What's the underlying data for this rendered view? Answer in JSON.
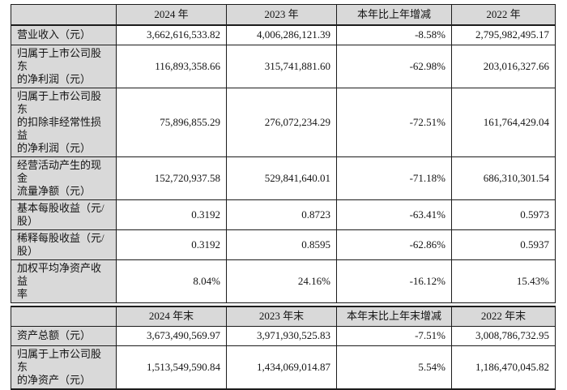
{
  "table": {
    "colors": {
      "header_bg": "#d9d9d9",
      "border": "#1c1c1c",
      "text": "#141414",
      "page_bg": "#ffffff"
    },
    "section1": {
      "header": {
        "c0": "",
        "c1": "2024 年",
        "c2": "2023 年",
        "c3": "本年比上年增减",
        "c4": "2022 年"
      },
      "rows": [
        {
          "label": "营业收入（元）",
          "v1": "3,662,616,533.82",
          "v2": "4,006,286,121.39",
          "v3": "-8.58%",
          "v4": "2,795,982,495.17"
        },
        {
          "label": "归属于上市公司股东\n的净利润（元）",
          "v1": "116,893,358.66",
          "v2": "315,741,881.60",
          "v3": "-62.98%",
          "v4": "203,016,327.66"
        },
        {
          "label": "归属于上市公司股东\n的扣除非经常性损益\n的净利润（元）",
          "v1": "75,896,855.29",
          "v2": "276,072,234.29",
          "v3": "-72.51%",
          "v4": "161,764,429.04"
        },
        {
          "label": "经营活动产生的现金\n流量净额（元）",
          "v1": "152,720,937.58",
          "v2": "529,841,640.01",
          "v3": "-71.18%",
          "v4": "686,310,301.54"
        },
        {
          "label": "基本每股收益（元/\n股）",
          "v1": "0.3192",
          "v2": "0.8723",
          "v3": "-63.41%",
          "v4": "0.5973"
        },
        {
          "label": "稀释每股收益（元/\n股）",
          "v1": "0.3192",
          "v2": "0.8595",
          "v3": "-62.86%",
          "v4": "0.5937"
        },
        {
          "label": "加权平均净资产收益\n率",
          "v1": "8.04%",
          "v2": "24.16%",
          "v3": "-16.12%",
          "v4": "15.43%"
        }
      ]
    },
    "section2": {
      "header": {
        "c0": "",
        "c1": "2024 年末",
        "c2": "2023 年末",
        "c3": "本年末比上年末增减",
        "c4": "2022 年末"
      },
      "rows": [
        {
          "label": "资产总额（元）",
          "v1": "3,673,490,569.97",
          "v2": "3,971,930,525.83",
          "v3": "-7.51%",
          "v4": "3,008,786,732.95"
        },
        {
          "label": "归属于上市公司股东\n的净资产（元）",
          "v1": "1,513,549,590.84",
          "v2": "1,434,069,014.87",
          "v3": "5.54%",
          "v4": "1,186,470,045.82"
        }
      ]
    }
  }
}
